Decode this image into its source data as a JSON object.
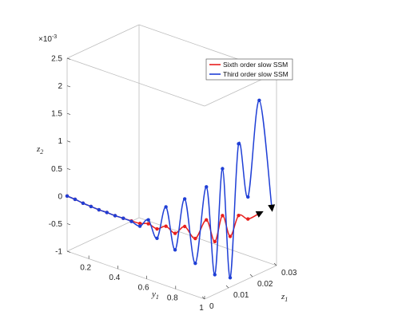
{
  "chart_data": {
    "type": "line",
    "subtype": "3d-line",
    "view": "3d-box",
    "grid": false,
    "legend_position": "top-right",
    "exponent_label": "×10-3",
    "axes": {
      "y1": {
        "label": "y1",
        "label_main": "y",
        "label_sub": "1",
        "range": [
          0.05,
          1.0
        ],
        "ticks": [
          0.2,
          0.4,
          0.6,
          0.8,
          1
        ],
        "tick_labels": [
          "0.2",
          "0.4",
          "0.6",
          "0.8",
          "1"
        ]
      },
      "z1": {
        "label": "z1",
        "label_main": "z",
        "label_sub": "1",
        "range": [
          0,
          0.03
        ],
        "ticks": [
          0,
          0.01,
          0.02,
          0.03
        ],
        "tick_labels": [
          "0",
          "0.01",
          "0.02",
          "0.03"
        ]
      },
      "z2": {
        "label": "z2",
        "label_main": "z",
        "label_sub": "2",
        "range": [
          -1,
          2.5
        ],
        "unit_scale": 0.001,
        "ticks": [
          -1,
          -0.5,
          0,
          0.5,
          1,
          1.5,
          2,
          2.5
        ],
        "tick_labels": [
          "-1",
          "-0.5",
          "0",
          "0.5",
          "1",
          "1.5",
          "2",
          "2.5"
        ]
      }
    },
    "series": [
      {
        "name": "Sixth order slow SSM",
        "color": "#e8201e",
        "marker": "dot",
        "arrow": "end",
        "points": [
          {
            "y1": 0.05,
            "z1": 0.0,
            "z2": 0.0
          },
          {
            "y1": 0.1,
            "z1": 0.0003,
            "z2": -0.02
          },
          {
            "y1": 0.15,
            "z1": 0.0006,
            "z2": -0.05
          },
          {
            "y1": 0.2,
            "z1": 0.0009,
            "z2": -0.07
          },
          {
            "y1": 0.25,
            "z1": 0.0012,
            "z2": -0.09
          },
          {
            "y1": 0.3,
            "z1": 0.0015,
            "z2": -0.1
          },
          {
            "y1": 0.35,
            "z1": 0.0019,
            "z2": -0.12
          },
          {
            "y1": 0.4,
            "z1": 0.0023,
            "z2": -0.13
          },
          {
            "y1": 0.45,
            "z1": 0.0027,
            "z2": -0.14
          },
          {
            "y1": 0.5,
            "z1": 0.0032,
            "z2": -0.15
          },
          {
            "y1": 0.55,
            "z1": 0.0037,
            "z2": -0.12
          },
          {
            "y1": 0.6,
            "z1": 0.0043,
            "z2": -0.18
          },
          {
            "y1": 0.65,
            "z1": 0.005,
            "z2": -0.1
          },
          {
            "y1": 0.7,
            "z1": 0.0058,
            "z2": -0.2
          },
          {
            "y1": 0.75,
            "z1": 0.0068,
            "z2": -0.05
          },
          {
            "y1": 0.8,
            "z1": 0.0082,
            "z2": -0.25
          },
          {
            "y1": 0.85,
            "z1": 0.0098,
            "z2": 0.1
          },
          {
            "y1": 0.88,
            "z1": 0.0115,
            "z2": -0.3
          },
          {
            "y1": 0.9,
            "z1": 0.0135,
            "z2": 0.15
          },
          {
            "y1": 0.92,
            "z1": 0.0155,
            "z2": -0.25
          },
          {
            "y1": 0.94,
            "z1": 0.0178,
            "z2": 0.1
          },
          {
            "y1": 0.96,
            "z1": 0.0205,
            "z2": 0.0
          },
          {
            "y1": 0.98,
            "z1": 0.024,
            "z2": 0.05
          }
        ]
      },
      {
        "name": "Third order slow SSM",
        "color": "#1f3fd6",
        "marker": "dot",
        "arrow": "end",
        "points": [
          {
            "y1": 0.05,
            "z1": 0.0,
            "z2": 0.0
          },
          {
            "y1": 0.1,
            "z1": 0.0003,
            "z2": -0.02
          },
          {
            "y1": 0.15,
            "z1": 0.0006,
            "z2": -0.05
          },
          {
            "y1": 0.2,
            "z1": 0.0009,
            "z2": -0.07
          },
          {
            "y1": 0.25,
            "z1": 0.0012,
            "z2": -0.09
          },
          {
            "y1": 0.3,
            "z1": 0.0015,
            "z2": -0.1
          },
          {
            "y1": 0.35,
            "z1": 0.0019,
            "z2": -0.12
          },
          {
            "y1": 0.4,
            "z1": 0.0023,
            "z2": -0.13
          },
          {
            "y1": 0.45,
            "z1": 0.0027,
            "z2": -0.15
          },
          {
            "y1": 0.5,
            "z1": 0.0032,
            "z2": -0.2
          },
          {
            "y1": 0.55,
            "z1": 0.0037,
            "z2": -0.05
          },
          {
            "y1": 0.6,
            "z1": 0.0043,
            "z2": -0.35
          },
          {
            "y1": 0.65,
            "z1": 0.005,
            "z2": 0.25
          },
          {
            "y1": 0.7,
            "z1": 0.0058,
            "z2": -0.5
          },
          {
            "y1": 0.75,
            "z1": 0.0068,
            "z2": 0.45
          },
          {
            "y1": 0.8,
            "z1": 0.0082,
            "z2": -0.7
          },
          {
            "y1": 0.85,
            "z1": 0.0098,
            "z2": 0.7
          },
          {
            "y1": 0.88,
            "z1": 0.0115,
            "z2": -0.9
          },
          {
            "y1": 0.9,
            "z1": 0.0135,
            "z2": 1.0
          },
          {
            "y1": 0.92,
            "z1": 0.0155,
            "z2": -1.0
          },
          {
            "y1": 0.94,
            "z1": 0.0178,
            "z2": 1.4
          },
          {
            "y1": 0.96,
            "z1": 0.0205,
            "z2": 0.4
          },
          {
            "y1": 0.98,
            "z1": 0.024,
            "z2": 2.1
          },
          {
            "y1": 1.0,
            "z1": 0.028,
            "z2": 0.1
          }
        ]
      }
    ]
  }
}
